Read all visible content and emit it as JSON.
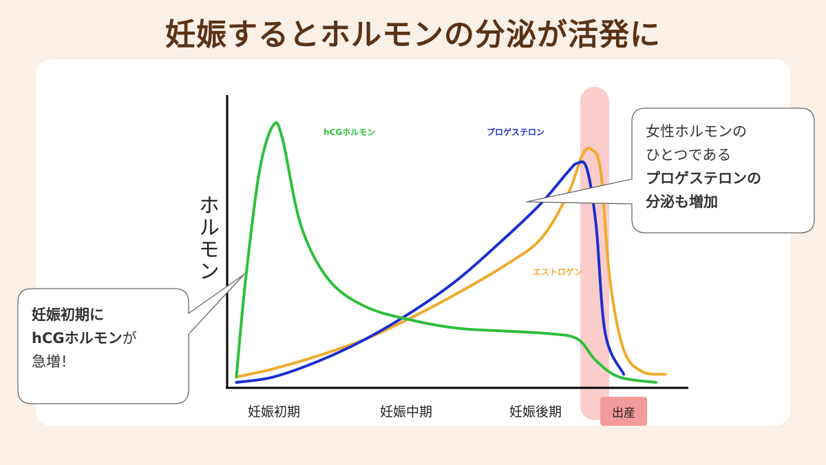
{
  "title": "妊娠するとホルモンの分泌が活発に",
  "chart_data": {
    "type": "line",
    "ylabel": "ホルモン",
    "x_categories": [
      "妊娠初期",
      "妊娠中期",
      "妊娠後期"
    ],
    "highlight_label": "出産",
    "series": [
      {
        "name": "hCGホルモン",
        "color": "#2dbf3a",
        "values": [
          [
            0.02,
            4
          ],
          [
            0.04,
            40
          ],
          [
            0.07,
            80
          ],
          [
            0.1,
            97
          ],
          [
            0.12,
            92
          ],
          [
            0.16,
            60
          ],
          [
            0.22,
            40
          ],
          [
            0.3,
            30
          ],
          [
            0.4,
            25
          ],
          [
            0.5,
            22
          ],
          [
            0.6,
            21
          ],
          [
            0.7,
            20
          ],
          [
            0.76,
            18
          ],
          [
            0.8,
            10
          ],
          [
            0.85,
            4
          ],
          [
            0.93,
            2
          ]
        ]
      },
      {
        "name": "プロゲステロン",
        "color": "#1a2fd0",
        "values": [
          [
            0.02,
            2
          ],
          [
            0.1,
            4
          ],
          [
            0.2,
            10
          ],
          [
            0.3,
            18
          ],
          [
            0.4,
            28
          ],
          [
            0.5,
            40
          ],
          [
            0.6,
            55
          ],
          [
            0.68,
            68
          ],
          [
            0.74,
            80
          ],
          [
            0.76,
            83
          ],
          [
            0.78,
            81
          ],
          [
            0.8,
            60
          ],
          [
            0.82,
            20
          ],
          [
            0.86,
            5
          ]
        ]
      },
      {
        "name": "エストロゲン",
        "color": "#f0aa2a",
        "values": [
          [
            0.02,
            4
          ],
          [
            0.1,
            7
          ],
          [
            0.2,
            12
          ],
          [
            0.3,
            18
          ],
          [
            0.4,
            26
          ],
          [
            0.5,
            35
          ],
          [
            0.6,
            45
          ],
          [
            0.68,
            55
          ],
          [
            0.74,
            72
          ],
          [
            0.77,
            86
          ],
          [
            0.79,
            88
          ],
          [
            0.81,
            80
          ],
          [
            0.83,
            40
          ],
          [
            0.86,
            14
          ],
          [
            0.9,
            6
          ],
          [
            0.95,
            5
          ]
        ]
      }
    ],
    "grid": false,
    "legend": "inline"
  },
  "callouts": {
    "left": {
      "line1": "妊娠初期に",
      "line2_bold": "hCGホルモン",
      "line2_rest": "が",
      "line3": "急増！"
    },
    "right": {
      "line1": "女性ホルモンの",
      "line2": "ひとつである",
      "line3_bold": "プロゲステロンの",
      "line4_bold": "分泌も増加"
    }
  }
}
